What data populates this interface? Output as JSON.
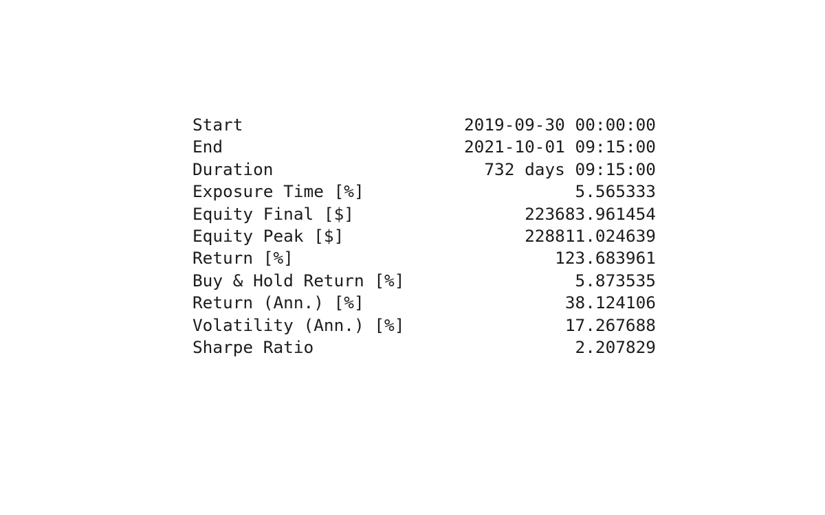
{
  "stats": [
    {
      "label": "Start",
      "value": "2019-09-30 00:00:00"
    },
    {
      "label": "End",
      "value": "2021-10-01 09:15:00"
    },
    {
      "label": "Duration",
      "value": "732 days 09:15:00"
    },
    {
      "label": "Exposure Time [%]",
      "value": "5.565333"
    },
    {
      "label": "Equity Final [$]",
      "value": "223683.961454"
    },
    {
      "label": "Equity Peak [$]",
      "value": "228811.024639"
    },
    {
      "label": "Return [%]",
      "value": "123.683961"
    },
    {
      "label": "Buy & Hold Return [%]",
      "value": "5.873535"
    },
    {
      "label": "Return (Ann.) [%]",
      "value": "38.124106"
    },
    {
      "label": "Volatility (Ann.) [%]",
      "value": "17.267688"
    },
    {
      "label": "Sharpe Ratio",
      "value": "2.207829"
    }
  ]
}
